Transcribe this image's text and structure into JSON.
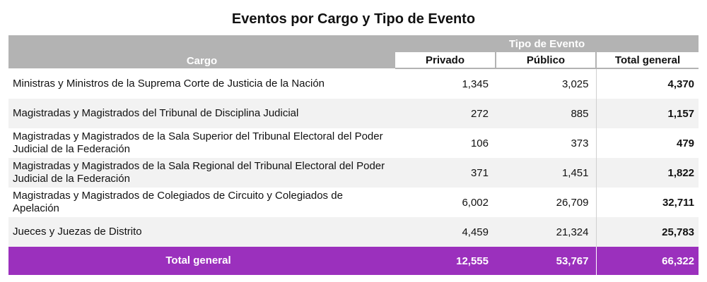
{
  "title": "Eventos por Cargo y Tipo de Evento",
  "header": {
    "group": "Tipo de Evento",
    "cargo": "Cargo",
    "privado": "Privado",
    "publico": "Público",
    "total": "Total general"
  },
  "colors": {
    "header_bg": "#b3b3b3",
    "total_bg": "#9b30bd",
    "alt_row": "#f2f2f2"
  },
  "rows": [
    {
      "cargo": "Ministras y Ministros de la Suprema Corte de Justicia de la Nación",
      "privado": "1,345",
      "publico": "3,025",
      "total": "4,370"
    },
    {
      "cargo": "Magistradas y Magistrados del Tribunal de Disciplina Judicial",
      "privado": "272",
      "publico": "885",
      "total": "1,157"
    },
    {
      "cargo": "Magistradas y Magistrados de la Sala Superior del Tribunal Electoral del Poder Judicial de la Federación",
      "privado": "106",
      "publico": "373",
      "total": "479"
    },
    {
      "cargo": "Magistradas y Magistrados de la Sala Regional del Tribunal Electoral del Poder Judicial de la Federación",
      "privado": "371",
      "publico": "1,451",
      "total": "1,822"
    },
    {
      "cargo": "Magistradas y Magistrados de Colegiados de Circuito y Colegiados de Apelación",
      "privado": "6,002",
      "publico": "26,709",
      "total": "32,711"
    },
    {
      "cargo": "Jueces y Juezas de Distrito",
      "privado": "4,459",
      "publico": "21,324",
      "total": "25,783"
    }
  ],
  "total_row": {
    "label": "Total general",
    "privado": "12,555",
    "publico": "53,767",
    "total": "66,322"
  },
  "chart_data": {
    "type": "table",
    "title": "Eventos por Cargo y Tipo de Evento",
    "columns": [
      "Cargo",
      "Privado",
      "Público",
      "Total general"
    ],
    "column_group": "Tipo de Evento",
    "rows": [
      [
        "Ministras y Ministros de la Suprema Corte de Justicia de la Nación",
        1345,
        3025,
        4370
      ],
      [
        "Magistradas y Magistrados del Tribunal de Disciplina Judicial",
        272,
        885,
        1157
      ],
      [
        "Magistradas y Magistrados de la Sala Superior del Tribunal Electoral del Poder Judicial de la Federación",
        106,
        373,
        479
      ],
      [
        "Magistradas y Magistrados de la Sala Regional del Tribunal Electoral del Poder Judicial de la Federación",
        371,
        1451,
        1822
      ],
      [
        "Magistradas y Magistrados de Colegiados de Circuito y Colegiados de Apelación",
        6002,
        26709,
        32711
      ],
      [
        "Jueces y Juezas de Distrito",
        4459,
        21324,
        25783
      ]
    ],
    "totals": [
      "Total general",
      12555,
      53767,
      66322
    ]
  }
}
